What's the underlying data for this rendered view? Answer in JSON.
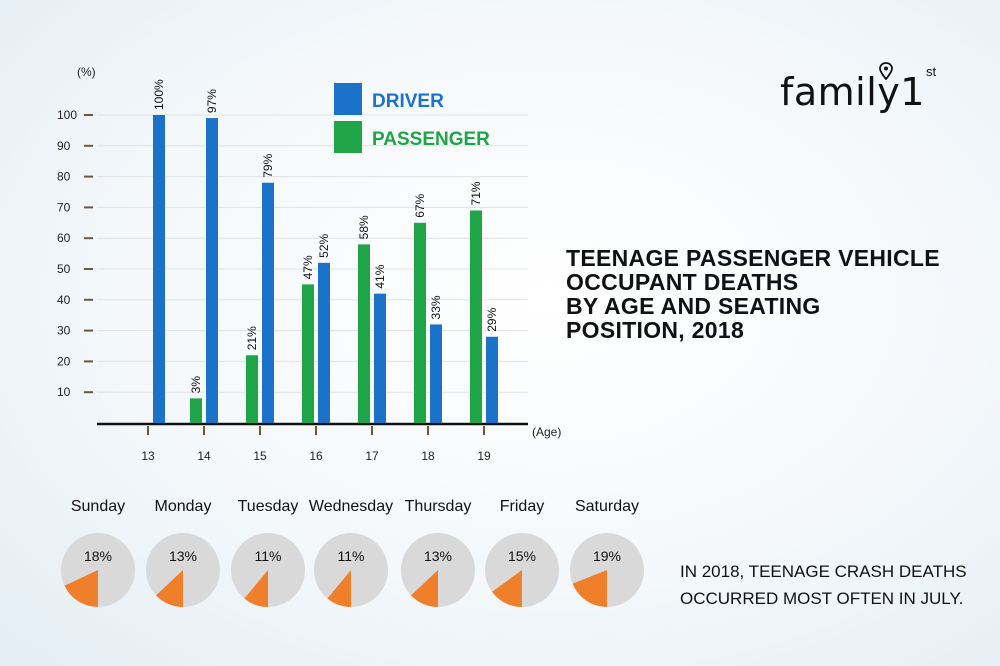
{
  "brand": {
    "logo_text": "family1",
    "logo_sup": "st"
  },
  "title_lines": [
    "TEENAGE PASSENGER VEHICLE",
    "OCCUPANT DEATHS",
    "BY AGE AND SEATING",
    "POSITION, 2018"
  ],
  "note_lines": [
    "IN 2018, TEENAGE CRASH DEATHS",
    "OCCURRED MOST OFTEN IN JULY."
  ],
  "colors": {
    "driver": "#1a73c9",
    "passenger": "#1fa547",
    "pie_bg": "#d9d9d9",
    "pie_slice": "#f07f2c",
    "axis": "#111111",
    "grid": "#e2e2e2"
  },
  "chart_data": [
    {
      "type": "bar",
      "title": "",
      "xlabel": "(Age)",
      "ylabel": "(%)",
      "ylim": [
        0,
        100
      ],
      "yticks": [
        10,
        20,
        30,
        40,
        50,
        60,
        70,
        80,
        90,
        100
      ],
      "categories": [
        "13",
        "14",
        "15",
        "16",
        "17",
        "18",
        "19"
      ],
      "grid": true,
      "legend_position": "top-center",
      "series": [
        {
          "name": "PASSENGER",
          "color": "#1fa547",
          "values": [
            null,
            3,
            21,
            47,
            58,
            67,
            71
          ],
          "labels": [
            "",
            "3%",
            "21%",
            "47%",
            "58%",
            "67%",
            "71%"
          ],
          "heights": [
            null,
            8,
            22,
            45,
            58,
            65,
            69
          ]
        },
        {
          "name": "DRIVER",
          "color": "#1a73c9",
          "values": [
            100,
            97,
            79,
            52,
            41,
            33,
            29
          ],
          "labels": [
            "100%",
            "97%",
            "79%",
            "52%",
            "41%",
            "33%",
            "29%"
          ],
          "heights": [
            100,
            99,
            78,
            52,
            42,
            32,
            28
          ]
        }
      ]
    },
    {
      "type": "pie",
      "title": "",
      "categories": [
        "Sunday",
        "Monday",
        "Tuesday",
        "Wednesday",
        "Thursday",
        "Friday",
        "Saturday"
      ],
      "values": [
        18,
        13,
        11,
        11,
        13,
        15,
        19
      ],
      "labels": [
        "18%",
        "13%",
        "11%",
        "11%",
        "13%",
        "15%",
        "19%"
      ]
    }
  ]
}
